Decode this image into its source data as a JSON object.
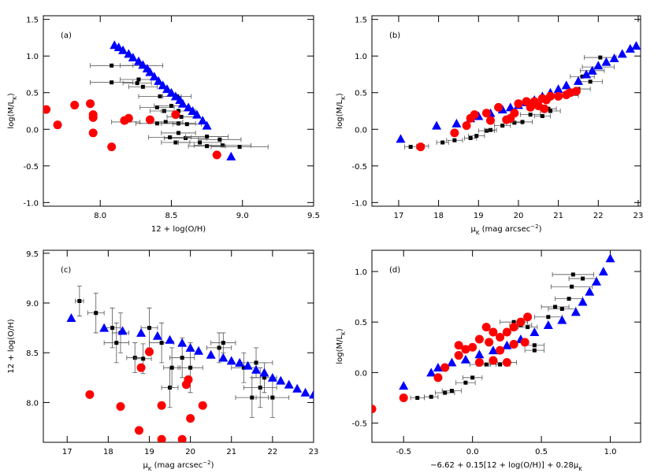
{
  "chart_data": [
    {
      "type": "scatter",
      "panel_label": "(a)",
      "xlabel": [
        {
          "text": "12 + log(O/H)"
        }
      ],
      "ylabel": [
        {
          "text": "log(M/L"
        },
        {
          "text": "K",
          "sub": true
        },
        {
          "text": ")"
        }
      ],
      "xlim": [
        7.6,
        9.5
      ],
      "ylim": [
        -1.05,
        1.55
      ],
      "xticks": [
        {
          "value": 8,
          "label": "8.0"
        },
        8.5,
        {
          "value": 9,
          "label": "9.0"
        },
        9.5
      ],
      "yticks": [
        1.5,
        {
          "value": 1,
          "label": "1.0"
        },
        0.5,
        {
          "value": 0,
          "label": "0.0"
        },
        -0.5,
        {
          "value": -1,
          "label": "-1.0"
        }
      ],
      "series": [
        {
          "marker": "square",
          "color": "#000000",
          "x": [
            8.08,
            8.08,
            8.29,
            8.27,
            8.26,
            8.3,
            8.42,
            8.54,
            8.4,
            8.5,
            8.45,
            8.55,
            8.57,
            8.46,
            8.4,
            8.55,
            8.61,
            8.18,
            8.55,
            8.6,
            8.53,
            8.7,
            8.75,
            8.84,
            8.86,
            8.98,
            8.49,
            8.75
          ],
          "values": [
            0.87,
            0.64,
            0.87,
            0.68,
            0.63,
            0.58,
            0.45,
            0.45,
            0.3,
            0.32,
            0.25,
            0.25,
            0.17,
            0.1,
            0.08,
            0.08,
            0.07,
            0.1,
            -0.05,
            -0.12,
            -0.18,
            -0.18,
            -0.1,
            -0.14,
            -0.22,
            -0.24,
            -0.11,
            -0.23
          ],
          "xerr": [
            0.15,
            0.15,
            0.15,
            0.13,
            0.1,
            0.1,
            0.15,
            0.1,
            0.12,
            0.12,
            0.1,
            0.12,
            0.1,
            0.12,
            0.15,
            0.12,
            0.1,
            0.1,
            0.12,
            0.15,
            0.1,
            0.15,
            0.15,
            0.15,
            0.2,
            0.2,
            0.15,
            0.13
          ]
        },
        {
          "marker": "triangle",
          "color": "#0000ff",
          "x": [
            8.1,
            8.13,
            8.16,
            8.2,
            8.23,
            8.27,
            8.3,
            8.33,
            8.35,
            8.38,
            8.41,
            8.44,
            8.47,
            8.5,
            8.53,
            8.56,
            8.58,
            8.62,
            8.65,
            8.68,
            8.72,
            8.75,
            8.92
          ],
          "values": [
            1.15,
            1.12,
            1.08,
            1.03,
            0.98,
            0.93,
            0.88,
            0.83,
            0.78,
            0.72,
            0.66,
            0.6,
            0.55,
            0.5,
            0.45,
            0.4,
            0.35,
            0.3,
            0.25,
            0.2,
            0.12,
            0.05,
            -0.37
          ]
        },
        {
          "marker": "circle",
          "color": "#ff0000",
          "x": [
            7.62,
            7.7,
            7.82,
            7.93,
            7.95,
            7.95,
            7.95,
            8.08,
            8.17,
            8.2,
            8.35,
            8.53,
            8.82
          ],
          "values": [
            0.27,
            0.06,
            0.33,
            0.35,
            0.2,
            0.16,
            -0.05,
            -0.24,
            0.12,
            0.15,
            0.13,
            0.2,
            -0.35
          ]
        }
      ]
    },
    {
      "type": "scatter",
      "panel_label": "(b)",
      "xlabel": [
        {
          "text": "μ"
        },
        {
          "text": "K",
          "sub": true
        },
        {
          "text": " (mag arcsec"
        },
        {
          "text": "−2",
          "sup": true
        },
        {
          "text": ")"
        }
      ],
      "ylabel": [
        {
          "text": "log(M/L"
        },
        {
          "text": "K",
          "sub": true
        },
        {
          "text": ")"
        }
      ],
      "xlim": [
        16.33,
        23.06
      ],
      "ylim": [
        -1.05,
        1.55
      ],
      "xticks": [
        17,
        18,
        19,
        20,
        21,
        22,
        23
      ],
      "yticks": [
        1.5,
        {
          "value": 1,
          "label": "1.0"
        },
        0.5,
        {
          "value": 0,
          "label": "0.0"
        },
        -0.5,
        {
          "value": -1,
          "label": "-1.0"
        }
      ],
      "series": [
        {
          "marker": "square",
          "color": "#000000",
          "x": [
            17.3,
            17.6,
            18.1,
            18.4,
            18.8,
            18.95,
            19.2,
            19.3,
            19.6,
            19.9,
            20.1,
            20.3,
            20.6,
            20.8,
            21.2,
            21.5,
            21.8,
            21.6,
            22.0,
            22.05,
            21.85,
            20.75
          ],
          "values": [
            -0.24,
            -0.23,
            -0.18,
            -0.15,
            -0.12,
            -0.09,
            -0.02,
            -0.01,
            0.05,
            0.09,
            0.1,
            0.2,
            0.18,
            0.25,
            0.46,
            0.55,
            0.65,
            0.72,
            0.85,
            0.98,
            0.8,
            0.28
          ],
          "xerr": [
            0.15,
            0.15,
            0.15,
            0.2,
            0.15,
            0.2,
            0.2,
            0.15,
            0.2,
            0.2,
            0.25,
            0.25,
            0.2,
            0.25,
            0.3,
            0.3,
            0.3,
            0.3,
            0.4,
            0.4,
            0.3,
            0.2
          ]
        },
        {
          "marker": "triangle",
          "color": "#0000ff",
          "x": [
            17.05,
            17.95,
            18.45,
            18.8,
            19.0,
            19.3,
            19.6,
            19.8,
            20.0,
            20.2,
            20.4,
            20.6,
            20.8,
            21.0,
            21.2,
            21.5,
            21.7,
            21.85,
            22.0,
            22.2,
            22.4,
            22.6,
            22.8,
            22.95
          ],
          "values": [
            -0.13,
            0.05,
            0.08,
            0.15,
            0.18,
            0.22,
            0.27,
            0.3,
            0.33,
            0.37,
            0.4,
            0.45,
            0.5,
            0.55,
            0.6,
            0.66,
            0.75,
            0.8,
            0.87,
            0.92,
            0.97,
            1.03,
            1.1,
            1.14
          ]
        },
        {
          "marker": "circle",
          "color": "#ff0000",
          "x": [
            17.55,
            18.4,
            18.7,
            18.8,
            18.9,
            19.2,
            19.3,
            19.5,
            19.7,
            19.8,
            19.9,
            20.0,
            20.2,
            20.3,
            20.5,
            20.6,
            20.7,
            20.8,
            21.0,
            21.2,
            21.3,
            21.45,
            20.65,
            20.4
          ],
          "values": [
            -0.24,
            -0.05,
            0.05,
            0.15,
            0.2,
            0.22,
            0.12,
            0.3,
            0.13,
            0.15,
            0.22,
            0.35,
            0.38,
            0.3,
            0.32,
            0.42,
            0.4,
            0.45,
            0.45,
            0.47,
            0.5,
            0.52,
            0.28,
            0.38
          ]
        }
      ]
    },
    {
      "type": "scatter",
      "panel_label": "(c)",
      "xlabel": [
        {
          "text": "μ"
        },
        {
          "text": "K",
          "sub": true
        },
        {
          "text": " (mag arcsec"
        },
        {
          "text": "−2",
          "sup": true
        },
        {
          "text": ")"
        }
      ],
      "ylabel": [
        {
          "text": "12 + log(O/H)"
        }
      ],
      "xlim": [
        16.42,
        23.0
      ],
      "ylim": [
        7.6,
        9.53
      ],
      "xticks": [
        17,
        18,
        19,
        20,
        21,
        22,
        23
      ],
      "yticks": [
        9.5,
        {
          "value": 9,
          "label": "9.0"
        },
        8.5,
        {
          "value": 8,
          "label": "8.0"
        }
      ],
      "series": [
        {
          "marker": "square",
          "color": "#000000",
          "x": [
            17.3,
            17.7,
            18.1,
            18.2,
            18.3,
            18.65,
            18.85,
            19.0,
            19.3,
            19.5,
            19.55,
            19.8,
            20.0,
            20.7,
            20.8,
            21.3,
            21.6,
            21.7,
            21.5,
            22.0,
            21.8
          ],
          "values": [
            9.02,
            8.9,
            8.75,
            8.6,
            8.7,
            8.45,
            8.44,
            8.75,
            8.6,
            8.15,
            8.35,
            8.45,
            8.35,
            8.55,
            8.6,
            8.35,
            8.4,
            8.15,
            8.05,
            8.05,
            8.25
          ],
          "xerr": [
            0.1,
            0.2,
            0.2,
            0.3,
            0.2,
            0.2,
            0.2,
            0.2,
            0.3,
            0.2,
            0.2,
            0.3,
            0.3,
            0.3,
            0.3,
            0.3,
            0.4,
            0.4,
            0.4,
            0.4,
            0.3
          ],
          "yerr": [
            0.15,
            0.2,
            0.2,
            0.2,
            0.2,
            0.15,
            0.15,
            0.2,
            0.2,
            0.2,
            0.2,
            0.2,
            0.25,
            0.15,
            0.1,
            0.15,
            0.15,
            0.2,
            0.2,
            0.2,
            0.15
          ]
        },
        {
          "marker": "triangle",
          "color": "#0000ff",
          "x": [
            17.1,
            17.9,
            18.35,
            18.8,
            19.2,
            19.5,
            19.8,
            20.0,
            20.2,
            20.5,
            20.8,
            21.0,
            21.2,
            21.4,
            21.6,
            21.8,
            22.0,
            22.2,
            22.4,
            22.6,
            22.8,
            23.0
          ],
          "values": [
            8.85,
            8.75,
            8.72,
            8.7,
            8.67,
            8.63,
            8.6,
            8.55,
            8.52,
            8.48,
            8.45,
            8.42,
            8.4,
            8.37,
            8.33,
            8.3,
            8.25,
            8.22,
            8.18,
            8.14,
            8.1,
            8.08
          ]
        },
        {
          "marker": "circle",
          "color": "#ff0000",
          "x": [
            17.55,
            18.3,
            18.75,
            18.8,
            19.0,
            19.3,
            19.3,
            19.8,
            19.9,
            19.95,
            20.0,
            20.3
          ],
          "values": [
            8.08,
            7.96,
            7.72,
            8.35,
            8.51,
            7.97,
            7.63,
            7.63,
            8.18,
            8.23,
            7.84,
            7.97
          ]
        }
      ]
    },
    {
      "type": "scatter",
      "panel_label": "(d)",
      "xlabel": [
        {
          "text": "−6.62 + 0.15[12 + log(O/H)] + 0.28μ"
        },
        {
          "text": "K",
          "sub": true
        }
      ],
      "ylabel": [
        {
          "text": "log(M/L"
        },
        {
          "text": "K",
          "sub": true
        },
        {
          "text": ")"
        }
      ],
      "xlim": [
        -0.73,
        1.22
      ],
      "ylim": [
        -0.69,
        1.21
      ],
      "xticks": [
        -0.5,
        {
          "value": 0,
          "label": "0.0"
        },
        0.5,
        {
          "value": 1,
          "label": "1.0"
        }
      ],
      "yticks": [
        {
          "value": 1,
          "label": "1.0"
        },
        0.5,
        {
          "value": 0,
          "label": "0.0"
        },
        -0.5
      ],
      "series": [
        {
          "marker": "square",
          "color": "#000000",
          "x": [
            -0.4,
            -0.3,
            -0.2,
            -0.15,
            -0.05,
            0.0,
            0.05,
            0.1,
            0.2,
            0.25,
            0.45,
            0.45,
            0.4,
            0.55,
            0.6,
            0.65,
            0.7,
            0.72,
            0.73,
            0.8,
            0.3,
            0.35
          ],
          "values": [
            -0.25,
            -0.24,
            -0.2,
            -0.18,
            -0.1,
            -0.05,
            0.08,
            0.08,
            0.08,
            0.1,
            0.22,
            0.27,
            0.45,
            0.55,
            0.65,
            0.63,
            0.73,
            0.85,
            0.97,
            0.93,
            0.5,
            0.47
          ],
          "xerr": [
            0.05,
            0.05,
            0.07,
            0.07,
            0.07,
            0.07,
            0.07,
            0.07,
            0.07,
            0.07,
            0.07,
            0.07,
            0.07,
            0.1,
            0.1,
            0.1,
            0.1,
            0.15,
            0.15,
            0.1,
            0.1,
            0.08
          ]
        },
        {
          "marker": "triangle",
          "color": "#0000ff",
          "x": [
            -0.5,
            -0.3,
            -0.25,
            -0.15,
            -0.05,
            0.05,
            0.15,
            0.25,
            0.35,
            0.45,
            0.55,
            0.65,
            0.75,
            0.8,
            0.85,
            0.9,
            0.95,
            1.0
          ],
          "values": [
            -0.13,
            0.0,
            0.05,
            0.1,
            0.13,
            0.18,
            0.22,
            0.27,
            0.33,
            0.4,
            0.47,
            0.52,
            0.6,
            0.7,
            0.8,
            0.9,
            1.0,
            1.13
          ]
        },
        {
          "marker": "circle",
          "color": "#ff0000",
          "x": [
            -0.73,
            -0.5,
            -0.25,
            -0.2,
            -0.1,
            -0.05,
            0.0,
            0.05,
            0.1,
            0.15,
            0.12,
            0.2,
            0.25,
            0.3,
            0.35,
            0.4,
            0.15,
            0.2,
            0.25,
            -0.1,
            0.3,
            0.05,
            0.38
          ],
          "values": [
            -0.36,
            -0.25,
            -0.05,
            0.05,
            0.17,
            0.23,
            0.25,
            0.33,
            0.45,
            0.4,
            0.3,
            0.35,
            0.4,
            0.45,
            0.5,
            0.55,
            0.12,
            0.22,
            0.1,
            0.27,
            0.28,
            0.1,
            0.3
          ]
        }
      ]
    }
  ]
}
